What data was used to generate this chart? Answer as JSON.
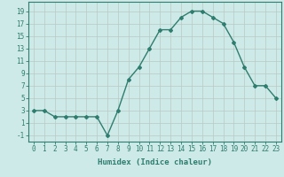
{
  "x": [
    0,
    1,
    2,
    3,
    4,
    5,
    6,
    7,
    8,
    9,
    10,
    11,
    12,
    13,
    14,
    15,
    16,
    17,
    18,
    19,
    20,
    21,
    22,
    23
  ],
  "y": [
    3,
    3,
    2,
    2,
    2,
    2,
    2,
    -1,
    3,
    8,
    10,
    13,
    16,
    16,
    18,
    19,
    19,
    18,
    17,
    14,
    10,
    7,
    7,
    5
  ],
  "line_color": "#2e7d6e",
  "marker": "D",
  "marker_size": 2,
  "bg_color": "#ceeae8",
  "grid_color": "#b8c8c4",
  "xlabel": "Humidex (Indice chaleur)",
  "xlim": [
    -0.5,
    23.5
  ],
  "ylim": [
    -2,
    20.5
  ],
  "yticks": [
    -1,
    1,
    3,
    5,
    7,
    9,
    11,
    13,
    15,
    17,
    19
  ],
  "xticks": [
    0,
    1,
    2,
    3,
    4,
    5,
    6,
    7,
    8,
    9,
    10,
    11,
    12,
    13,
    14,
    15,
    16,
    17,
    18,
    19,
    20,
    21,
    22,
    23
  ],
  "xtick_labels": [
    "0",
    "1",
    "2",
    "3",
    "4",
    "5",
    "6",
    "7",
    "8",
    "9",
    "10",
    "11",
    "12",
    "13",
    "14",
    "15",
    "16",
    "17",
    "18",
    "19",
    "20",
    "21",
    "22",
    "23"
  ],
  "font_color": "#2e7d6e",
  "xlabel_fontsize": 6.5,
  "tick_fontsize": 5.5,
  "line_width": 1.0
}
